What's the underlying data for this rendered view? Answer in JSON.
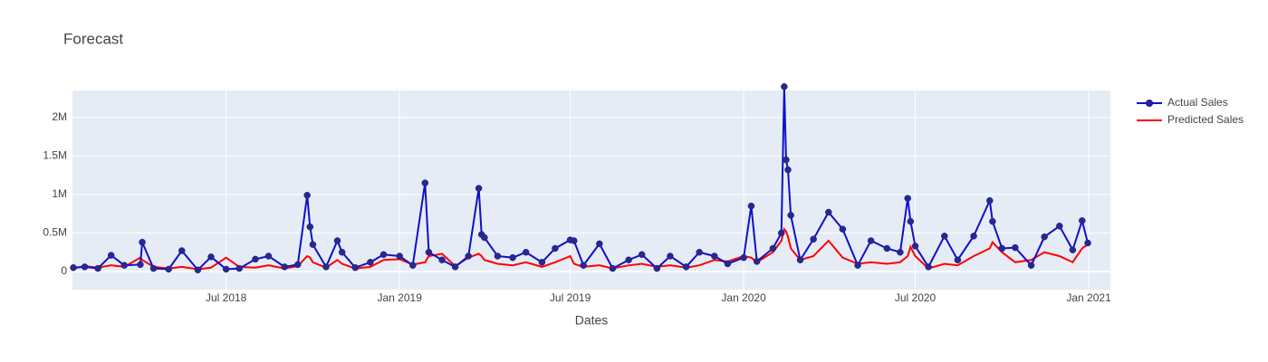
{
  "chart_data": {
    "type": "line",
    "title": "Forecast",
    "xlabel": "Dates",
    "x": [
      "2018-01-20",
      "2018-02-01",
      "2018-02-15",
      "2018-03-01",
      "2018-03-15",
      "2018-04-01",
      "2018-04-03",
      "2018-04-15",
      "2018-05-01",
      "2018-05-15",
      "2018-06-01",
      "2018-06-15",
      "2018-07-01",
      "2018-07-15",
      "2018-08-01",
      "2018-08-15",
      "2018-09-01",
      "2018-09-15",
      "2018-09-25",
      "2018-09-28",
      "2018-10-01",
      "2018-10-15",
      "2018-10-27",
      "2018-11-01",
      "2018-11-15",
      "2018-12-01",
      "2018-12-15",
      "2019-01-01",
      "2019-01-15",
      "2019-01-28",
      "2019-02-01",
      "2019-02-15",
      "2019-03-01",
      "2019-03-15",
      "2019-03-26",
      "2019-03-29",
      "2019-04-01",
      "2019-04-15",
      "2019-05-01",
      "2019-05-15",
      "2019-06-01",
      "2019-06-15",
      "2019-07-01",
      "2019-07-05",
      "2019-07-15",
      "2019-08-01",
      "2019-08-15",
      "2019-09-01",
      "2019-09-15",
      "2019-10-01",
      "2019-10-15",
      "2019-11-01",
      "2019-11-15",
      "2019-12-01",
      "2019-12-15",
      "2020-01-01",
      "2020-01-09",
      "2020-01-15",
      "2020-02-01",
      "2020-02-10",
      "2020-02-13",
      "2020-02-15",
      "2020-02-17",
      "2020-02-20",
      "2020-03-01",
      "2020-03-15",
      "2020-03-31",
      "2020-04-15",
      "2020-05-01",
      "2020-05-15",
      "2020-06-01",
      "2020-06-15",
      "2020-06-23",
      "2020-06-26",
      "2020-07-01",
      "2020-07-15",
      "2020-08-01",
      "2020-08-15",
      "2020-09-01",
      "2020-09-18",
      "2020-09-21",
      "2020-10-01",
      "2020-10-15",
      "2020-11-01",
      "2020-11-15",
      "2020-12-01",
      "2020-12-15",
      "2020-12-25",
      "2020-12-31"
    ],
    "series": [
      {
        "name": "Actual Sales",
        "color": "#1010c8",
        "marker_color": "#2a2a80",
        "markers": true,
        "values": [
          50000,
          60000,
          40000,
          210000,
          80000,
          90000,
          380000,
          40000,
          30000,
          270000,
          20000,
          190000,
          30000,
          40000,
          160000,
          200000,
          60000,
          90000,
          990000,
          580000,
          350000,
          60000,
          400000,
          250000,
          50000,
          120000,
          220000,
          200000,
          80000,
          1150000,
          250000,
          150000,
          60000,
          200000,
          1080000,
          480000,
          440000,
          200000,
          180000,
          250000,
          120000,
          300000,
          410000,
          400000,
          80000,
          360000,
          40000,
          150000,
          220000,
          40000,
          200000,
          60000,
          250000,
          200000,
          100000,
          180000,
          850000,
          130000,
          300000,
          500000,
          2400000,
          1450000,
          1320000,
          730000,
          150000,
          420000,
          770000,
          550000,
          80000,
          400000,
          300000,
          250000,
          950000,
          650000,
          330000,
          60000,
          460000,
          150000,
          460000,
          920000,
          650000,
          300000,
          310000,
          80000,
          450000,
          590000,
          280000,
          660000,
          370000
        ]
      },
      {
        "name": "Predicted Sales",
        "color": "#ff0000",
        "markers": false,
        "values": [
          40000,
          70000,
          50000,
          80000,
          60000,
          180000,
          150000,
          60000,
          40000,
          60000,
          30000,
          50000,
          180000,
          60000,
          50000,
          80000,
          40000,
          70000,
          200000,
          180000,
          120000,
          50000,
          150000,
          100000,
          40000,
          60000,
          150000,
          160000,
          90000,
          120000,
          200000,
          230000,
          70000,
          180000,
          230000,
          200000,
          150000,
          100000,
          80000,
          120000,
          60000,
          120000,
          200000,
          100000,
          60000,
          80000,
          40000,
          80000,
          100000,
          60000,
          80000,
          50000,
          80000,
          150000,
          130000,
          200000,
          180000,
          120000,
          250000,
          400000,
          550000,
          520000,
          450000,
          300000,
          150000,
          200000,
          400000,
          180000,
          100000,
          120000,
          100000,
          120000,
          200000,
          320000,
          200000,
          40000,
          100000,
          80000,
          200000,
          300000,
          380000,
          250000,
          120000,
          150000,
          250000,
          200000,
          120000,
          300000,
          350000
        ]
      }
    ],
    "xlim": [
      "2018-01-19",
      "2021-01-24"
    ],
    "xticks": [
      {
        "value": "2018-07-01",
        "label": "Jul 2018"
      },
      {
        "value": "2019-01-01",
        "label": "Jan 2019"
      },
      {
        "value": "2019-07-01",
        "label": "Jul 2019"
      },
      {
        "value": "2020-01-01",
        "label": "Jan 2020"
      },
      {
        "value": "2020-07-01",
        "label": "Jul 2020"
      },
      {
        "value": "2021-01-01",
        "label": "Jan 2021"
      }
    ],
    "ylim": [
      -235000,
      2350000
    ],
    "yticks": [
      0,
      {
        "value": 500000,
        "label": "0.5M"
      },
      {
        "value": 1000000,
        "label": "1M"
      },
      {
        "value": 1500000,
        "label": "1.5M"
      },
      {
        "value": 2000000,
        "label": "2M"
      }
    ],
    "grid": true,
    "legend": "outside-right"
  }
}
